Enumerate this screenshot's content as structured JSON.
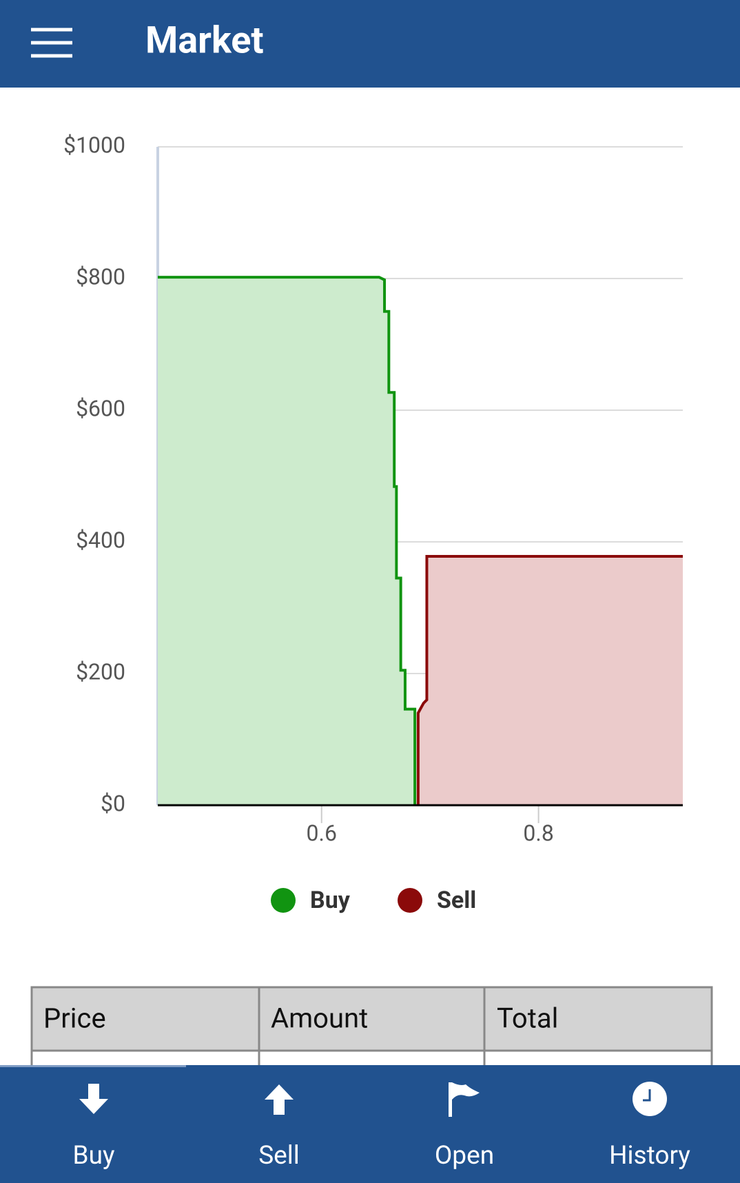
{
  "header": {
    "title": "Market"
  },
  "chart_data": {
    "type": "line",
    "fill": true,
    "series": [
      {
        "name": "Buy",
        "color": "#119411",
        "fill_color": "#cdebcd",
        "x": [
          0.449,
          0.653,
          0.658,
          0.658,
          0.662,
          0.662,
          0.667,
          0.667,
          0.669,
          0.669,
          0.673,
          0.673,
          0.677,
          0.677,
          0.686,
          0.686
        ],
        "values": [
          802,
          802,
          798,
          750,
          750,
          627,
          627,
          484,
          484,
          345,
          345,
          205,
          205,
          146,
          146,
          0
        ]
      },
      {
        "name": "Sell",
        "color": "#8b0a0a",
        "fill_color": "#ebcbcb",
        "x": [
          0.689,
          0.689,
          0.694,
          0.697,
          0.697,
          0.933
        ],
        "values": [
          0,
          140,
          155,
          160,
          378,
          378
        ]
      }
    ],
    "xlim": [
      0.449,
      0.933
    ],
    "xticks": [
      0.6,
      0.8
    ],
    "ylim": [
      0,
      1000
    ],
    "yticks": [
      {
        "value": 0,
        "label": "$0"
      },
      {
        "value": 200,
        "label": "$200"
      },
      {
        "value": 400,
        "label": "$400"
      },
      {
        "value": 600,
        "label": "$600"
      },
      {
        "value": 800,
        "label": "$800"
      },
      {
        "value": 1000,
        "label": "$1000"
      }
    ],
    "grid": true,
    "legend": "bottom"
  },
  "table": {
    "columns": [
      "Price",
      "Amount",
      "Total"
    ]
  },
  "nav": [
    {
      "label": "Buy"
    },
    {
      "label": "Sell"
    },
    {
      "label": "Open"
    },
    {
      "label": "History"
    }
  ]
}
